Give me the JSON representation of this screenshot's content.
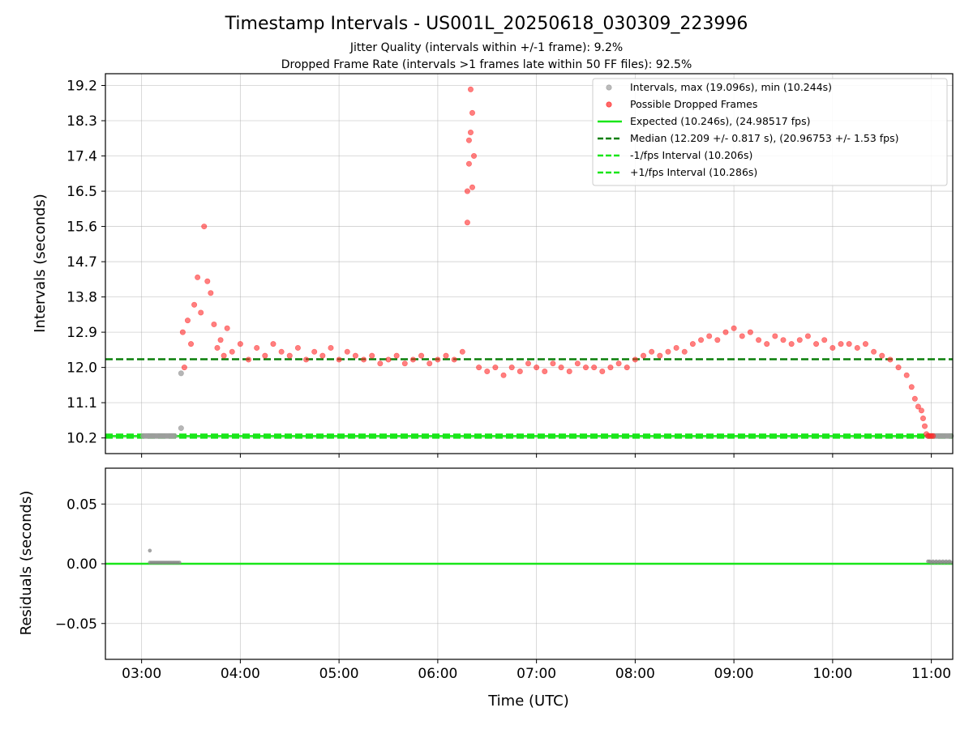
{
  "chart_data": [
    {
      "type": "scatter",
      "title": "Timestamp Intervals - US001L_20250618_030309_223996",
      "subtitle_lines": [
        "Jitter Quality (intervals within +/-1 frame): 9.2%",
        "Dropped Frame Rate (intervals >1 frames late within 50 FF files): 92.5%"
      ],
      "xlabel": "",
      "ylabel": "Intervals (seconds)",
      "xlim": [
        "02:38",
        "11:13"
      ],
      "ylim": [
        9.8,
        19.5
      ],
      "x_ticks": [
        "03:00",
        "04:00",
        "05:00",
        "06:00",
        "07:00",
        "08:00",
        "09:00",
        "10:00",
        "11:00"
      ],
      "y_ticks": [
        10.2,
        11.1,
        12.0,
        12.9,
        13.8,
        14.7,
        15.6,
        16.5,
        17.4,
        18.3,
        19.2
      ],
      "y_tick_labels": [
        "10.2",
        "11.1",
        "12.0",
        "12.9",
        "13.8",
        "14.7",
        "15.6",
        "16.5",
        "17.4",
        "18.3",
        "19.2"
      ],
      "grid": true,
      "legend_position": "top-right",
      "legend": [
        {
          "label": "Intervals, max (19.096s), min (10.244s)",
          "kind": "marker",
          "color": "#9e9e9e"
        },
        {
          "label": "Possible Dropped Frames",
          "kind": "marker",
          "color": "#ff2a2a"
        },
        {
          "label": "Expected (10.246s), (24.98517 fps)",
          "kind": "solid",
          "color": "#19e619"
        },
        {
          "label": "Median (12.209 +/- 0.817 s), (20.96753 +/- 1.53 fps)",
          "kind": "dashed",
          "color": "#0a7f0a"
        },
        {
          "label": "-1/fps Interval (10.206s)",
          "kind": "dashed",
          "color": "#19e619"
        },
        {
          "label": "+1/fps Interval (10.286s)",
          "kind": "dashed",
          "color": "#19e619"
        }
      ],
      "reference_lines": [
        {
          "name": "Expected",
          "y": 10.246,
          "style": "solid",
          "color": "#19e619"
        },
        {
          "name": "Median",
          "y": 12.209,
          "style": "dashed",
          "color": "#0a7f0a"
        },
        {
          "name": "-1/fps Interval",
          "y": 10.206,
          "style": "dashed",
          "color": "#19e619"
        },
        {
          "name": "+1/fps Interval",
          "y": 10.286,
          "style": "dashed",
          "color": "#19e619"
        }
      ],
      "series": [
        {
          "name": "Intervals",
          "color": "#9e9e9e",
          "x": [
            "03:01",
            "03:02",
            "03:03",
            "03:04",
            "03:05",
            "03:06",
            "03:07",
            "03:08",
            "03:09",
            "03:10",
            "03:11",
            "03:12",
            "03:13",
            "03:14",
            "03:15",
            "03:16",
            "03:17",
            "03:18",
            "03:19",
            "03:20",
            "03:24",
            "03:24",
            "10:58",
            "10:59",
            "11:00",
            "11:01",
            "11:02",
            "11:03",
            "11:04",
            "11:05",
            "11:06",
            "11:07",
            "11:08",
            "11:09",
            "11:10",
            "11:11",
            "11:12"
          ],
          "y": [
            10.25,
            10.25,
            10.25,
            10.25,
            10.25,
            10.25,
            10.25,
            10.25,
            10.25,
            10.25,
            10.25,
            10.25,
            10.25,
            10.25,
            10.25,
            10.25,
            10.25,
            10.25,
            10.25,
            10.25,
            10.45,
            11.85,
            10.25,
            10.25,
            10.25,
            10.25,
            10.25,
            10.25,
            10.25,
            10.25,
            10.25,
            10.25,
            10.25,
            10.25,
            10.25,
            10.25,
            10.25
          ]
        },
        {
          "name": "Possible Dropped Frames",
          "color": "#ff2a2a",
          "x": [
            "03:25",
            "03:26",
            "03:28",
            "03:30",
            "03:32",
            "03:34",
            "03:36",
            "03:38",
            "03:40",
            "03:42",
            "03:44",
            "03:46",
            "03:48",
            "03:50",
            "03:52",
            "03:55",
            "04:00",
            "04:05",
            "04:10",
            "04:15",
            "04:20",
            "04:25",
            "04:30",
            "04:35",
            "04:40",
            "04:45",
            "04:50",
            "04:55",
            "05:00",
            "05:05",
            "05:10",
            "05:15",
            "05:20",
            "05:25",
            "05:30",
            "05:35",
            "05:40",
            "05:45",
            "05:50",
            "05:55",
            "06:00",
            "06:05",
            "06:10",
            "06:15",
            "06:18",
            "06:18",
            "06:19",
            "06:19",
            "06:20",
            "06:20",
            "06:21",
            "06:21",
            "06:22",
            "06:25",
            "06:30",
            "06:35",
            "06:40",
            "06:45",
            "06:50",
            "06:55",
            "07:00",
            "07:05",
            "07:10",
            "07:15",
            "07:20",
            "07:25",
            "07:30",
            "07:35",
            "07:40",
            "07:45",
            "07:50",
            "07:55",
            "08:00",
            "08:05",
            "08:10",
            "08:15",
            "08:20",
            "08:25",
            "08:30",
            "08:35",
            "08:40",
            "08:45",
            "08:50",
            "08:55",
            "09:00",
            "09:05",
            "09:10",
            "09:15",
            "09:20",
            "09:25",
            "09:30",
            "09:35",
            "09:40",
            "09:45",
            "09:50",
            "09:55",
            "10:00",
            "10:05",
            "10:10",
            "10:15",
            "10:20",
            "10:25",
            "10:30",
            "10:35",
            "10:40",
            "10:45",
            "10:48",
            "10:50",
            "10:52",
            "10:54",
            "10:55",
            "10:56",
            "10:57",
            "10:58",
            "10:59",
            "11:00",
            "11:01"
          ],
          "y": [
            12.9,
            12.0,
            13.2,
            12.6,
            13.6,
            14.3,
            13.4,
            15.6,
            14.2,
            13.9,
            13.1,
            12.5,
            12.7,
            12.3,
            13.0,
            12.4,
            12.6,
            12.2,
            12.5,
            12.3,
            12.6,
            12.4,
            12.3,
            12.5,
            12.2,
            12.4,
            12.3,
            12.5,
            12.2,
            12.4,
            12.3,
            12.2,
            12.3,
            12.1,
            12.2,
            12.3,
            12.1,
            12.2,
            12.3,
            12.1,
            12.2,
            12.3,
            12.2,
            12.4,
            15.7,
            16.5,
            17.2,
            17.8,
            18.0,
            19.1,
            18.5,
            16.6,
            17.4,
            12.0,
            11.9,
            12.0,
            11.8,
            12.0,
            11.9,
            12.1,
            12.0,
            11.9,
            12.1,
            12.0,
            11.9,
            12.1,
            12.0,
            12.0,
            11.9,
            12.0,
            12.1,
            12.0,
            12.2,
            12.3,
            12.4,
            12.3,
            12.4,
            12.5,
            12.4,
            12.6,
            12.7,
            12.8,
            12.7,
            12.9,
            13.0,
            12.8,
            12.9,
            12.7,
            12.6,
            12.8,
            12.7,
            12.6,
            12.7,
            12.8,
            12.6,
            12.7,
            12.5,
            12.6,
            12.6,
            12.5,
            12.6,
            12.4,
            12.3,
            12.2,
            12.0,
            11.8,
            11.5,
            11.2,
            11.0,
            10.9,
            10.7,
            10.5,
            10.3,
            10.25,
            10.25,
            10.25,
            10.25
          ]
        }
      ]
    },
    {
      "type": "scatter",
      "title": "",
      "xlabel": "Time (UTC)",
      "ylabel": "Residuals (seconds)",
      "xlim": [
        "02:38",
        "11:13"
      ],
      "ylim": [
        -0.08,
        0.08
      ],
      "x_ticks": [
        "03:00",
        "04:00",
        "05:00",
        "06:00",
        "07:00",
        "08:00",
        "09:00",
        "10:00",
        "11:00"
      ],
      "y_ticks": [
        -0.05,
        0.0,
        0.05
      ],
      "y_tick_labels": [
        "−0.05",
        "0.00",
        "0.05"
      ],
      "grid": true,
      "reference_lines": [
        {
          "name": "Expected",
          "y": 0.0,
          "style": "solid",
          "color": "#19e619"
        }
      ],
      "series": [
        {
          "name": "Residuals",
          "color": "#888888",
          "x": [
            "03:05",
            "03:05",
            "03:06",
            "03:07",
            "03:08",
            "03:09",
            "03:10",
            "03:11",
            "03:12",
            "03:13",
            "03:14",
            "03:15",
            "03:16",
            "03:17",
            "03:18",
            "03:19",
            "03:20",
            "03:21",
            "03:22",
            "03:23",
            "10:58",
            "10:59",
            "11:00",
            "11:01",
            "11:02",
            "11:03",
            "11:04",
            "11:05",
            "11:06",
            "11:07",
            "11:08",
            "11:09",
            "11:10",
            "11:11",
            "11:12"
          ],
          "y": [
            0.011,
            0.001,
            0.001,
            0.001,
            0.001,
            0.001,
            0.001,
            0.001,
            0.001,
            0.001,
            0.001,
            0.001,
            0.001,
            0.001,
            0.001,
            0.001,
            0.001,
            0.001,
            0.001,
            0.001,
            0.002,
            0.002,
            0.001,
            0.002,
            0.001,
            0.002,
            0.001,
            0.002,
            0.001,
            0.002,
            0.001,
            0.002,
            0.001,
            0.002,
            0.001
          ]
        }
      ]
    }
  ]
}
